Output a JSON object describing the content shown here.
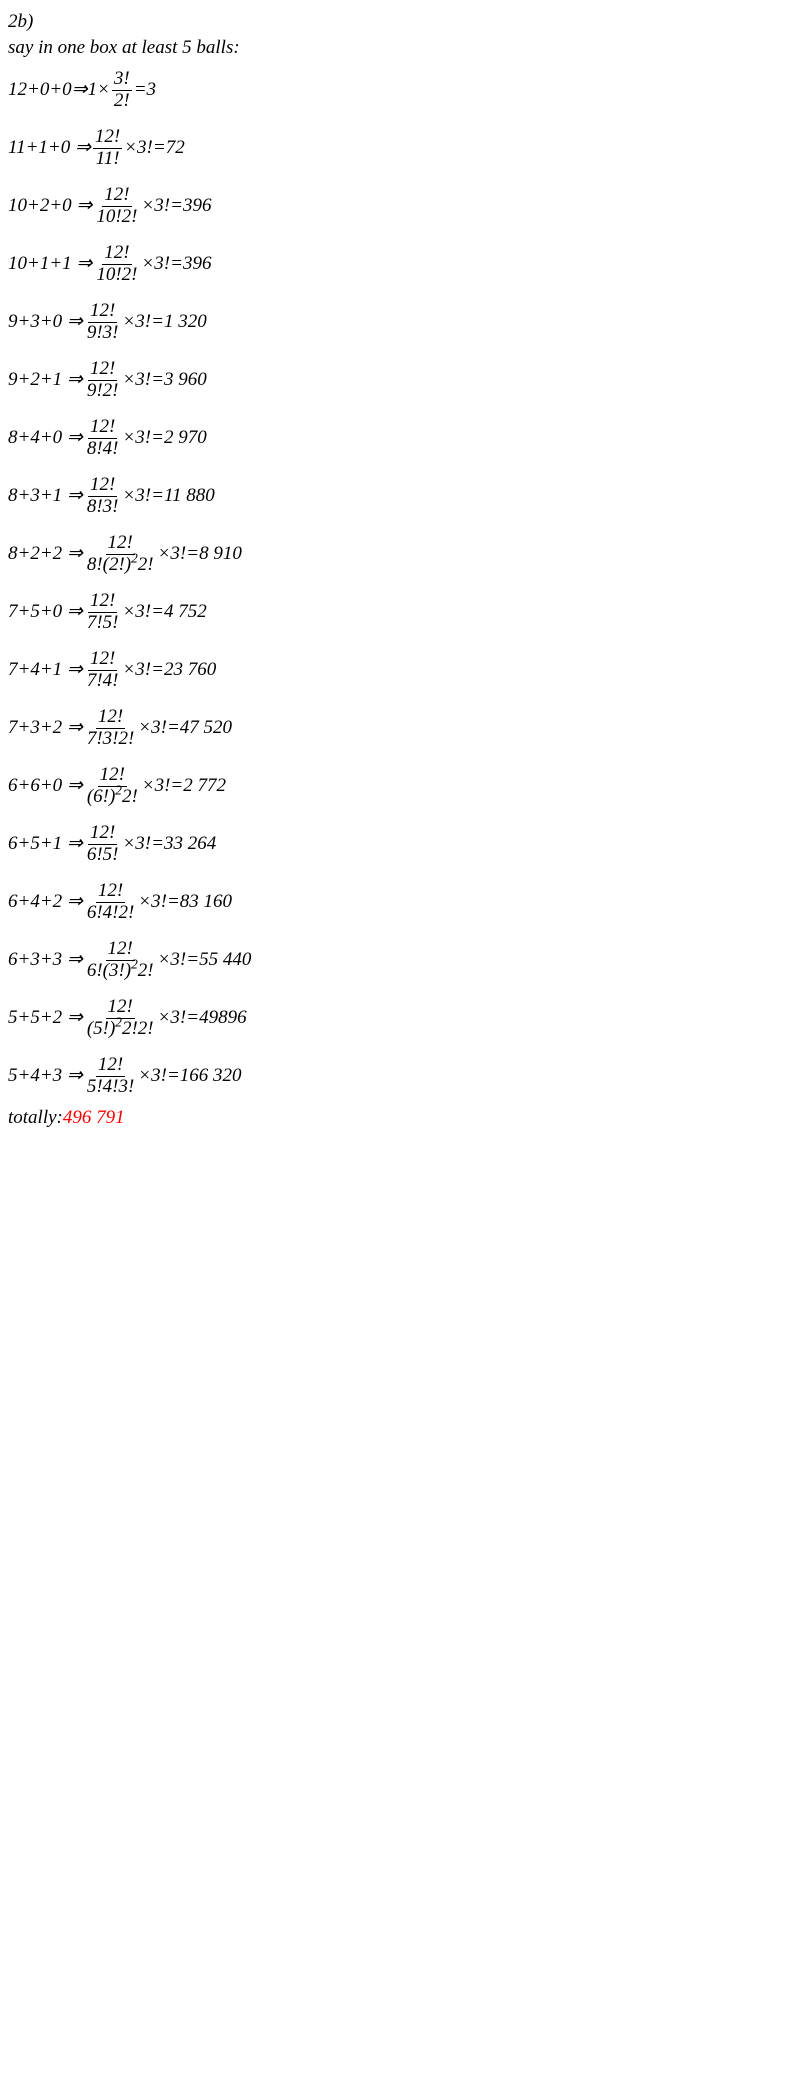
{
  "header": {
    "line1": "2b)",
    "line2": "say in one box at least 5 balls:"
  },
  "rows": [
    {
      "lhs": "12+0+0⇒1×",
      "num": "3!",
      "den": "2!",
      "rhs": "=3"
    },
    {
      "lhs": "11+1+0 ⇒",
      "num": "12!",
      "den": "11!",
      "rhs": "×3!=72"
    },
    {
      "lhs": "10+2+0 ⇒",
      "num": "12!",
      "den": "10!2!",
      "rhs": "×3!=396"
    },
    {
      "lhs": "10+1+1 ⇒",
      "num": "12!",
      "den": "10!2!",
      "rhs": "×3!=396"
    },
    {
      "lhs": "9+3+0 ⇒",
      "num": "12!",
      "den": "9!3!",
      "rhs": "×3!=1 320"
    },
    {
      "lhs": "9+2+1 ⇒",
      "num": "12!",
      "den": "9!2!",
      "rhs": "×3!=3 960"
    },
    {
      "lhs": "8+4+0 ⇒",
      "num": "12!",
      "den": "8!4!",
      "rhs": "×3!=2 970"
    },
    {
      "lhs": "8+3+1 ⇒",
      "num": "12!",
      "den": "8!3!",
      "rhs": "×3!=11 880"
    },
    {
      "lhs": "8+2+2  ⇒",
      "num": "12!",
      "den_html": "8!(2!)<sup>2</sup>2!",
      "rhs": "×3!=8 910"
    },
    {
      "lhs": "7+5+0 ⇒",
      "num": "12!",
      "den": "7!5!",
      "rhs": "×3!=4 752"
    },
    {
      "lhs": "7+4+1 ⇒",
      "num": "12!",
      "den": "7!4!",
      "rhs": "×3!=23 760"
    },
    {
      "lhs": "7+3+2 ⇒",
      "num": "12!",
      "den": "7!3!2!",
      "rhs": "×3!=47 520"
    },
    {
      "lhs": "6+6+0 ⇒",
      "num": "12!",
      "den_html": "(6!)<sup>2</sup>2!",
      "rhs": "×3!=2 772"
    },
    {
      "lhs": "6+5+1 ⇒",
      "num": "12!",
      "den": "6!5!",
      "rhs": "×3!=33 264"
    },
    {
      "lhs": "6+4+2 ⇒",
      "num": "12!",
      "den": "6!4!2!",
      "rhs": "×3!=83 160"
    },
    {
      "lhs": "6+3+3 ⇒",
      "num": "12!",
      "den_html": "6!(3!)<sup>2</sup>2!",
      "rhs": "×3!=55 440"
    },
    {
      "lhs": "5+5+2 ⇒",
      "num": "12!",
      "den_html": "(5!)<sup>2</sup>2!2!",
      "rhs": "×3!=49896"
    },
    {
      "lhs": "5+4+3 ⇒",
      "num": "12!",
      "den": "5!4!3!",
      "rhs": "×3!=166 320"
    }
  ],
  "footer": {
    "label": "totally:  ",
    "value": "496 791"
  }
}
